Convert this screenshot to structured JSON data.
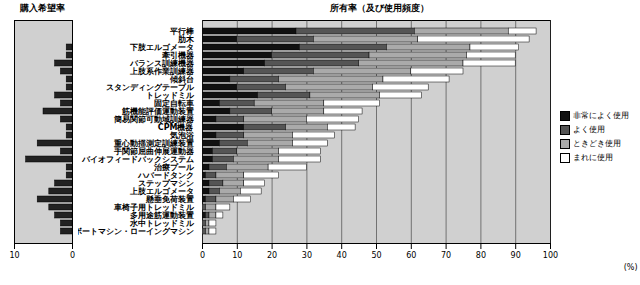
{
  "chart_data": [
    {
      "type": "bar",
      "title": "購入希望率",
      "orientation": "horizontal",
      "categories": [
        "平行棒",
        "肋木",
        "下肢エルゴメータ",
        "牽引機器",
        "バランス訓練機器",
        "上肢系作業訓練器",
        "傾斜台",
        "スタンディングテーブル",
        "トレッドミル",
        "固定自転車",
        "筋機能評価運動装置",
        "簡易関節可動域訓練器",
        "CPM機器",
        "気泡浴",
        "重心動揺測定訓練装置",
        "手関節屈曲伸展運動器",
        "バイオフィードバックシステム",
        "治療プール",
        "ハバードタンク",
        "ステップマシン",
        "上肢エルゴメータ",
        "懸垂免荷装置",
        "車椅子用トレッドミル",
        "多用途筋運動装置",
        "水中トレッドミル",
        "ボートマシン・ローイングマシン"
      ],
      "values": [
        0,
        0,
        1,
        1,
        3,
        2,
        1,
        1,
        3,
        2,
        5,
        2,
        1,
        1,
        6,
        2,
        8,
        1,
        1,
        3,
        4,
        6,
        4,
        3,
        2,
        2
      ],
      "color": "#222222",
      "xlim": [
        0,
        10
      ],
      "xticks": [
        0,
        10
      ],
      "grid": false
    },
    {
      "type": "bar",
      "title": "所有率（及び使用頻度）",
      "orientation": "horizontal",
      "stacked": true,
      "categories": [
        "平行棒",
        "肋木",
        "下肢エルゴメータ",
        "牽引機器",
        "バランス訓練機器",
        "上肢系作業訓練器",
        "傾斜台",
        "スタンディングテーブル",
        "トレッドミル",
        "固定自転車",
        "筋機能評価運動装置",
        "簡易関節可動域訓練器",
        "CPM機器",
        "気泡浴",
        "重心動揺測定訓練装置",
        "手関節屈曲伸展運動器",
        "バイオフィードバックシステム",
        "治療プール",
        "ハバードタンク",
        "ステップマシン",
        "上肢エルゴメータ",
        "懸垂免荷装置",
        "車椅子用トレッドミル",
        "多用途筋運動装置",
        "水中トレッドミル",
        "ボートマシン・ローイングマシン"
      ],
      "series": [
        {
          "name": "非常によく使用",
          "color": "#111111",
          "values": [
            27,
            10,
            28,
            20,
            18,
            12,
            8,
            10,
            16,
            5,
            8,
            4,
            12,
            4,
            5,
            3,
            3,
            2,
            1,
            2,
            2,
            1,
            0,
            1,
            0,
            0
          ]
        },
        {
          "name": "よく使用",
          "color": "#555555",
          "values": [
            34,
            22,
            25,
            28,
            27,
            20,
            14,
            14,
            15,
            10,
            12,
            8,
            12,
            8,
            8,
            7,
            6,
            5,
            3,
            4,
            3,
            3,
            1,
            1,
            1,
            1
          ]
        },
        {
          "name": "ときどき使用",
          "color": "#aaaaaa",
          "values": [
            27,
            30,
            24,
            28,
            30,
            28,
            30,
            25,
            20,
            20,
            15,
            18,
            12,
            14,
            13,
            12,
            13,
            12,
            8,
            6,
            6,
            5,
            3,
            2,
            1,
            1
          ]
        },
        {
          "name": "まれに使用",
          "color": "#ffffff",
          "values": [
            8,
            32,
            14,
            14,
            15,
            15,
            19,
            16,
            12,
            16,
            11,
            15,
            8,
            12,
            10,
            12,
            12,
            11,
            10,
            6,
            6,
            5,
            4,
            2,
            2,
            2
          ]
        }
      ],
      "xlim": [
        0,
        100
      ],
      "xticks": [
        0,
        10,
        20,
        30,
        40,
        50,
        60,
        70,
        80,
        90,
        100
      ],
      "xlabel": "(%)",
      "grid": true,
      "legend": "right"
    }
  ]
}
